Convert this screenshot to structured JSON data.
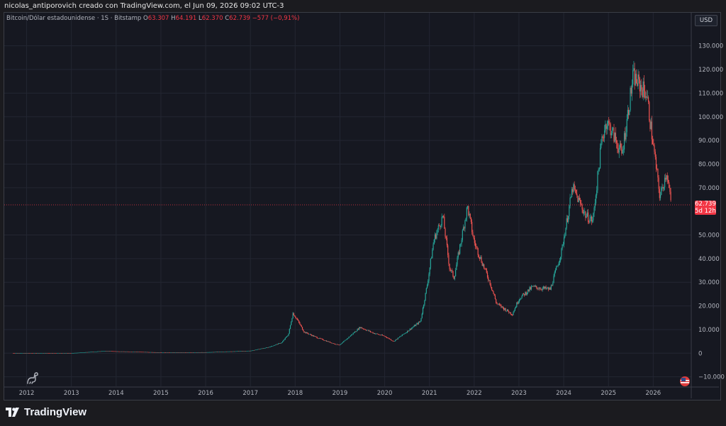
{
  "header": {
    "title": "nicolas_antiporovich creado con TradingView.com, el Jun 09, 2026 09:02 UTC-3"
  },
  "legend": {
    "symbol": "Bitcoin/Dólar estadounidense · 1S · Bitstamp",
    "o_label": "O",
    "o": "63.307",
    "h_label": "H",
    "h": "64.191",
    "l_label": "L",
    "l": "62.370",
    "c_label": "C",
    "c": "62.739",
    "change": "−577 (−0,91%)"
  },
  "currency_button": "USD",
  "price_tag": {
    "price": "62.739",
    "countdown": "5d 12h"
  },
  "brand": {
    "name": "TradingView"
  },
  "colors": {
    "up": "#26a69a",
    "down": "#ef5350",
    "last_price_line": "#f23645",
    "grid": "#232632",
    "background": "#161821"
  },
  "chart_data": {
    "type": "line",
    "style": "weekly candlestick",
    "ylim": [
      -14000,
      138000
    ],
    "xlim": [
      2011.5,
      2026.85
    ],
    "y_ticks": [
      {
        "value": 130000,
        "label": "130.000"
      },
      {
        "value": 120000,
        "label": "120.000"
      },
      {
        "value": 110000,
        "label": "110.000"
      },
      {
        "value": 100000,
        "label": "100.000"
      },
      {
        "value": 90000,
        "label": "90.000"
      },
      {
        "value": 80000,
        "label": "80.000"
      },
      {
        "value": 70000,
        "label": "70.000"
      },
      {
        "value": 50000,
        "label": "50.000"
      },
      {
        "value": 40000,
        "label": "40.000"
      },
      {
        "value": 30000,
        "label": "30.000"
      },
      {
        "value": 20000,
        "label": "20.000"
      },
      {
        "value": 10000,
        "label": "10.000"
      },
      {
        "value": 0,
        "label": "0"
      },
      {
        "value": -10000,
        "label": "−10.000"
      }
    ],
    "x_ticks": [
      {
        "value": 2012,
        "label": "2012"
      },
      {
        "value": 2013,
        "label": "2013"
      },
      {
        "value": 2014,
        "label": "2014"
      },
      {
        "value": 2015,
        "label": "2015"
      },
      {
        "value": 2016,
        "label": "2016"
      },
      {
        "value": 2017,
        "label": "2017"
      },
      {
        "value": 2018,
        "label": "2018"
      },
      {
        "value": 2019,
        "label": "2019"
      },
      {
        "value": 2020,
        "label": "2020"
      },
      {
        "value": 2021,
        "label": "2021"
      },
      {
        "value": 2022,
        "label": "2022"
      },
      {
        "value": 2023,
        "label": "2023"
      },
      {
        "value": 2024,
        "label": "2024"
      },
      {
        "value": 2025,
        "label": "2025"
      },
      {
        "value": 2026,
        "label": "2026"
      }
    ],
    "last_price": 62739,
    "series": [
      {
        "x": [
          2011.7,
          2012.5,
          2013.0,
          2013.8,
          2013.95,
          2014.5,
          2015.0,
          2016.0,
          2016.8,
          2017.0,
          2017.4,
          2017.7,
          2017.85,
          2017.95,
          2018.05,
          2018.2,
          2018.5,
          2018.9,
          2019.0,
          2019.45,
          2019.75,
          2020.0,
          2020.2,
          2020.5,
          2020.8,
          2020.95,
          2021.1,
          2021.3,
          2021.45,
          2021.55,
          2021.85,
          2022.0,
          2022.35,
          2022.5,
          2022.85,
          2023.0,
          2023.3,
          2023.7,
          2023.95,
          2024.2,
          2024.5,
          2024.65,
          2024.85,
          2024.95,
          2025.05,
          2025.3,
          2025.55,
          2025.75,
          2025.85,
          2026.0,
          2026.15,
          2026.3,
          2026.4
        ],
        "y": [
          5,
          10,
          20,
          1000,
          800,
          600,
          300,
          400,
          900,
          1000,
          2500,
          4500,
          8000,
          17000,
          14000,
          9000,
          6500,
          3800,
          3500,
          11000,
          8500,
          7200,
          5000,
          9200,
          13500,
          29000,
          48000,
          58000,
          36000,
          32000,
          62000,
          47000,
          30000,
          21000,
          16500,
          23000,
          28000,
          27000,
          43000,
          70000,
          58000,
          56000,
          90000,
          98000,
          95000,
          84000,
          117000,
          112000,
          110000,
          88000,
          66000,
          77000,
          62739
        ]
      }
    ]
  }
}
